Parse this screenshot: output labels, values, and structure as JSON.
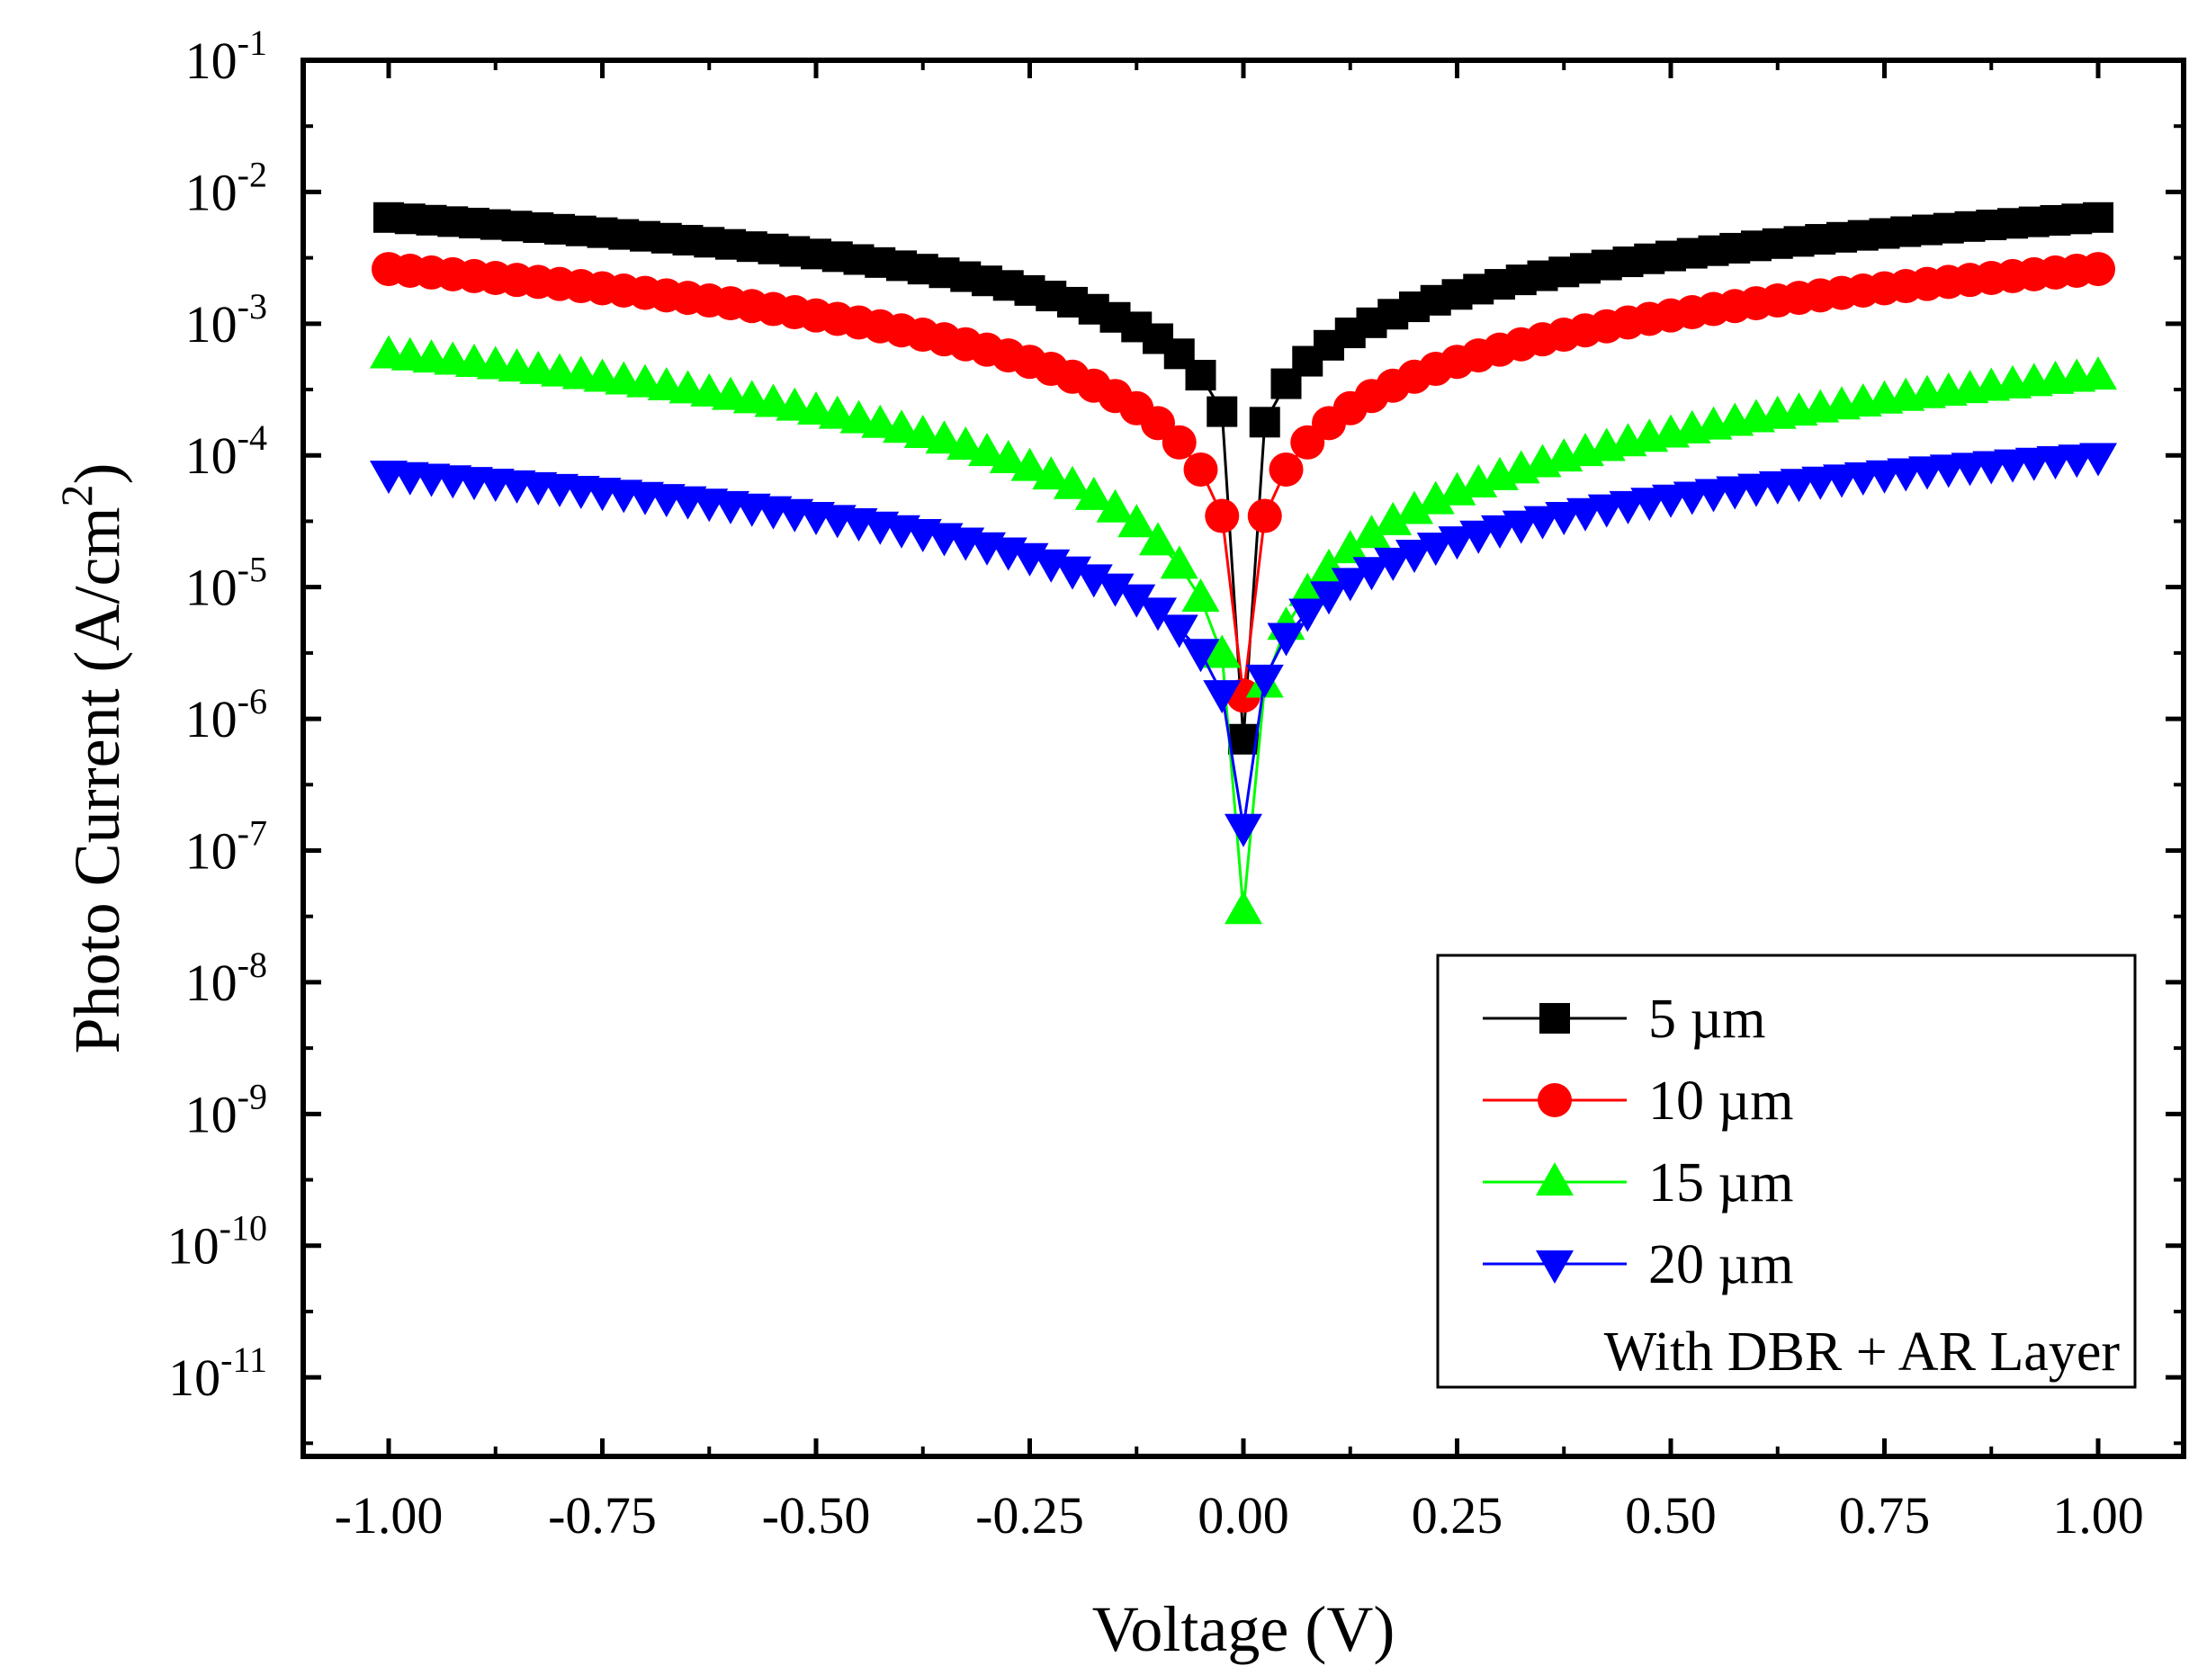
{
  "chart_data": {
    "type": "scatter",
    "title": "",
    "xlabel": "Voltage (V)",
    "ylabel": {
      "base": "Photo Current (A/cm",
      "sup": "2",
      "close": ")"
    },
    "xlim": [
      -1.1,
      1.1
    ],
    "ylim_log10": [
      -11.6,
      -1
    ],
    "yscale": "log",
    "grid": false,
    "legend_position": "bottom-right",
    "x_ticks": [
      -1.0,
      -0.75,
      -0.5,
      -0.25,
      0.0,
      0.25,
      0.5,
      0.75,
      1.0
    ],
    "x_tick_labels": [
      "-1.00",
      "-0.75",
      "-0.50",
      "-0.25",
      "0.00",
      "0.25",
      "0.50",
      "0.75",
      "1.00"
    ],
    "y_ticks_log10": [
      -1,
      -2,
      -3,
      -4,
      -5,
      -6,
      -7,
      -8,
      -9,
      -10,
      -11
    ],
    "y_tick_labels": [
      {
        "base": "10",
        "exp": "-1"
      },
      {
        "base": "10",
        "exp": "-2"
      },
      {
        "base": "10",
        "exp": "-3"
      },
      {
        "base": "10",
        "exp": "-4"
      },
      {
        "base": "10",
        "exp": "-5"
      },
      {
        "base": "10",
        "exp": "-6"
      },
      {
        "base": "10",
        "exp": "-7"
      },
      {
        "base": "10",
        "exp": "-8"
      },
      {
        "base": "10",
        "exp": "-9"
      },
      {
        "base": "10",
        "exp": "-10"
      },
      {
        "base": "10",
        "exp": "-11"
      }
    ],
    "legend_note": "With DBR + AR Layer",
    "voltage_step": 0.025,
    "voltage_range": [
      -1.0,
      1.0
    ],
    "series": [
      {
        "name": "5 µm",
        "marker": "square",
        "color": "#000000",
        "curve": {
          "A": 0.0064,
          "B": 0.0064,
          "n_left": 0.92,
          "n_right": 0.97,
          "center": 7e-07
        }
      },
      {
        "name": "10 µm",
        "marker": "circle",
        "color": "#ff0000",
        "curve": {
          "A": 0.0026,
          "B": 0.0026,
          "n_left": 1.17,
          "n_right": 1.17,
          "center": 1.5e-06
        }
      },
      {
        "name": "15 µm",
        "marker": "triangle-up",
        "color": "#00ff00",
        "curve": {
          "A": 0.00058,
          "B": 0.0004,
          "n_left": 1.42,
          "n_right": 1.46,
          "center": 3.5e-08
        }
      },
      {
        "name": "20 µm",
        "marker": "triangle-down",
        "color": "#0000ff",
        "curve": {
          "A": 7.2e-05,
          "B": 9.8e-05,
          "n_left": 1.04,
          "n_right": 1.05,
          "center": 1.5e-07
        }
      }
    ]
  }
}
